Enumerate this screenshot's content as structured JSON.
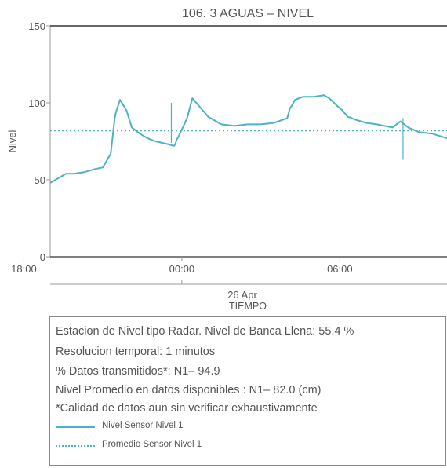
{
  "colors": {
    "series": "#4bb3c4",
    "axis": "#333333",
    "text": "#555555"
  },
  "chart_data": {
    "type": "line",
    "title": "106. 3 AGUAS – NIVEL",
    "xlabel": "TIEMPO",
    "ylabel": "Nivel",
    "ylim": [
      0,
      150
    ],
    "xlim": [
      -5.0,
      10.07
    ],
    "x_unit": "hours from 00:00 26 Apr",
    "yticks": [
      "0",
      "50",
      "100",
      "150"
    ],
    "xticks": [
      {
        "value": -6,
        "label": "18:00"
      },
      {
        "value": 0,
        "label": "00:00"
      },
      {
        "value": 6,
        "label": "06:00"
      }
    ],
    "date_label": "26 Apr",
    "grid": false,
    "series": [
      {
        "name": "Nivel Sensor Nivel 1",
        "style": "solid",
        "x": [
          -5.0,
          -4.7,
          -4.4,
          -4.1,
          -3.7,
          -3.3,
          -3.0,
          -2.7,
          -2.55,
          -2.5,
          -2.35,
          -2.1,
          -1.9,
          -1.6,
          -1.3,
          -1.0,
          -0.5,
          -0.3,
          -0.25,
          -0.2,
          -0.1,
          0.2,
          0.4,
          0.7,
          1.0,
          1.5,
          2.0,
          2.5,
          3.0,
          3.5,
          4.0,
          4.1,
          4.3,
          4.6,
          5.0,
          5.4,
          5.6,
          5.9,
          6.1,
          6.3,
          6.6,
          7.0,
          7.4,
          7.7,
          8.0,
          8.3,
          8.6,
          9.0,
          9.5,
          10.07
        ],
        "y": [
          48,
          51,
          54,
          54,
          55,
          57,
          58,
          67,
          90,
          94,
          102,
          95,
          84,
          80,
          77,
          75,
          73,
          72,
          73,
          76,
          79,
          90,
          103,
          97,
          91,
          86,
          85,
          86,
          86,
          87,
          90,
          96,
          102,
          104,
          104,
          105,
          103,
          98,
          95,
          91,
          89,
          87,
          86,
          85,
          84,
          88,
          84,
          81,
          80,
          77
        ]
      },
      {
        "name": "Promedio Sensor Nivel 1",
        "style": "dotted",
        "x": [
          -5.0,
          10.07
        ],
        "y": [
          82.0,
          82.0
        ]
      }
    ]
  },
  "info": {
    "lines": [
      "Estacion de Nivel tipo Radar. Nivel de Banca Llena: 55.4 %",
      "Resolucion temporal: 1 minutos",
      "% Datos transmitidos*: N1– 94.9",
      "Nivel Promedio en datos disponibles : N1– 82.0 (cm)",
      "*Calidad de datos aun sin verificar exhaustivamente"
    ],
    "legend": [
      {
        "label": "Nivel Sensor Nivel 1",
        "style": "solid"
      },
      {
        "label": "Promedio Sensor Nivel 1",
        "style": "dotted"
      }
    ]
  }
}
